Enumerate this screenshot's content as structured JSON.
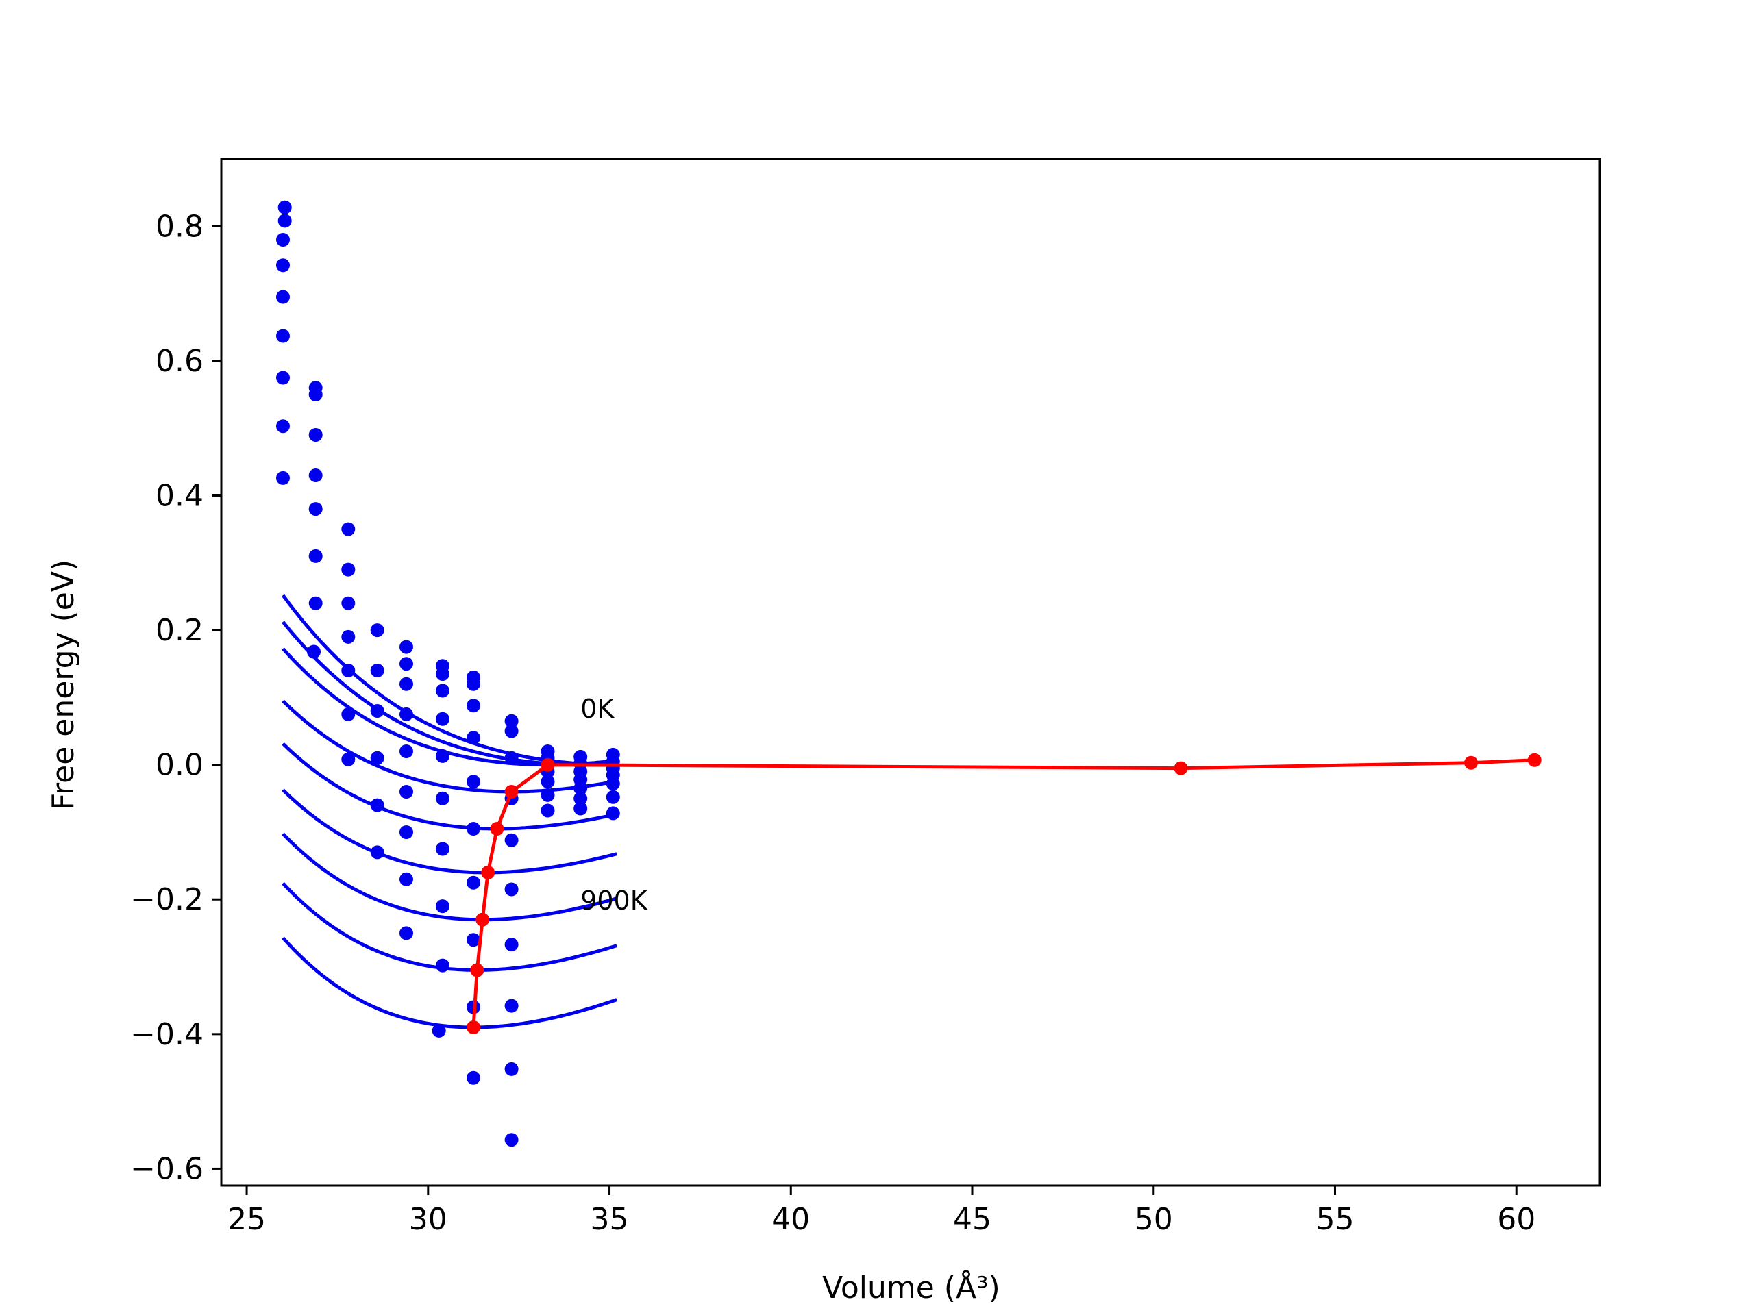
{
  "chart_data": {
    "type": "line",
    "title": "",
    "xlabel": "Volume (Å³)",
    "ylabel": "Free energy (eV)",
    "xlim": [
      24.3,
      62.3
    ],
    "ylim": [
      -0.625,
      0.9
    ],
    "xticks": [
      25,
      30,
      35,
      40,
      45,
      50,
      55,
      60
    ],
    "yticks": [
      -0.6,
      -0.4,
      -0.2,
      0.0,
      0.2,
      0.4,
      0.6,
      0.8
    ],
    "xtick_labels": [
      "25",
      "30",
      "35",
      "40",
      "45",
      "50",
      "55",
      "60"
    ],
    "ytick_labels": [
      "−0.6",
      "−0.4",
      "−0.2",
      "0.0",
      "0.2",
      "0.4",
      "0.6",
      "0.8"
    ],
    "grid": false,
    "legend": "none",
    "annotations": [
      {
        "text": "0K",
        "x": 34.2,
        "y": 0.07
      },
      {
        "text": "900K",
        "x": 34.2,
        "y": -0.215
      }
    ],
    "fit_curves": [
      {
        "color": "#0000ee",
        "v_min": 35.2,
        "f_min": 0.0,
        "stiffness": 0.0127,
        "v_start": 26.0,
        "v_end": 35.2
      },
      {
        "color": "#0000ee",
        "v_min": 34.3,
        "f_min": 0.0,
        "stiffness": 0.0135,
        "v_start": 26.0,
        "v_end": 35.2
      },
      {
        "color": "#0000ee",
        "v_min": 33.3,
        "f_min": 0.0,
        "stiffness": 0.0146,
        "v_start": 26.0,
        "v_end": 35.2
      },
      {
        "color": "#0000ee",
        "v_min": 32.3,
        "f_min": -0.04,
        "stiffness": 0.0158,
        "v_start": 26.0,
        "v_end": 35.2
      },
      {
        "color": "#0000ee",
        "v_min": 31.9,
        "f_min": -0.095,
        "stiffness": 0.0171,
        "v_start": 26.0,
        "v_end": 35.2
      },
      {
        "color": "#0000ee",
        "v_min": 31.6,
        "f_min": -0.16,
        "stiffness": 0.0186,
        "v_start": 26.0,
        "v_end": 35.2
      },
      {
        "color": "#0000ee",
        "v_min": 31.5,
        "f_min": -0.23,
        "stiffness": 0.0201,
        "v_start": 26.0,
        "v_end": 35.2
      },
      {
        "color": "#0000ee",
        "v_min": 31.35,
        "f_min": -0.305,
        "stiffness": 0.0216,
        "v_start": 26.0,
        "v_end": 35.2
      },
      {
        "color": "#0000ee",
        "v_min": 31.25,
        "f_min": -0.39,
        "stiffness": 0.0232,
        "v_start": 26.0,
        "v_end": 35.2
      }
    ],
    "series": [
      {
        "color": "#0000ee",
        "mode": "scatter",
        "points": [
          [
            26.05,
            0.828
          ],
          [
            26.05,
            0.808
          ],
          [
            26.0,
            0.78
          ],
          [
            26.0,
            0.742
          ],
          [
            26.0,
            0.695
          ],
          [
            26.0,
            0.637
          ],
          [
            26.0,
            0.575
          ],
          [
            26.0,
            0.503
          ],
          [
            26.0,
            0.426
          ],
          [
            26.9,
            0.56
          ],
          [
            26.9,
            0.55
          ],
          [
            26.9,
            0.49
          ],
          [
            26.9,
            0.43
          ],
          [
            26.9,
            0.38
          ],
          [
            26.9,
            0.31
          ],
          [
            26.9,
            0.24
          ],
          [
            26.85,
            0.168
          ],
          [
            27.8,
            0.35
          ],
          [
            27.8,
            0.29
          ],
          [
            27.8,
            0.24
          ],
          [
            27.8,
            0.19
          ],
          [
            27.8,
            0.14
          ],
          [
            27.8,
            0.075
          ],
          [
            27.8,
            0.008
          ],
          [
            28.6,
            0.2
          ],
          [
            28.6,
            0.14
          ],
          [
            28.6,
            0.08
          ],
          [
            28.6,
            0.01
          ],
          [
            28.6,
            -0.06
          ],
          [
            28.6,
            -0.13
          ],
          [
            29.4,
            0.175
          ],
          [
            29.4,
            0.15
          ],
          [
            29.4,
            0.12
          ],
          [
            29.4,
            0.075
          ],
          [
            29.4,
            0.02
          ],
          [
            29.4,
            -0.04
          ],
          [
            29.4,
            -0.1
          ],
          [
            29.4,
            -0.17
          ],
          [
            29.4,
            -0.25
          ],
          [
            30.4,
            0.147
          ],
          [
            30.4,
            0.135
          ],
          [
            30.4,
            0.11
          ],
          [
            30.4,
            0.068
          ],
          [
            30.4,
            0.013
          ],
          [
            30.4,
            -0.05
          ],
          [
            30.4,
            -0.125
          ],
          [
            30.4,
            -0.21
          ],
          [
            30.4,
            -0.298
          ],
          [
            30.3,
            -0.395
          ],
          [
            31.25,
            0.13
          ],
          [
            31.25,
            0.12
          ],
          [
            31.25,
            0.088
          ],
          [
            31.25,
            0.04
          ],
          [
            31.25,
            -0.025
          ],
          [
            31.25,
            -0.095
          ],
          [
            31.25,
            -0.175
          ],
          [
            31.25,
            -0.26
          ],
          [
            31.25,
            -0.36
          ],
          [
            31.25,
            -0.465
          ],
          [
            32.3,
            0.065
          ],
          [
            32.3,
            0.05
          ],
          [
            32.3,
            0.01
          ],
          [
            32.3,
            -0.05
          ],
          [
            32.3,
            -0.112
          ],
          [
            32.3,
            -0.185
          ],
          [
            32.3,
            -0.267
          ],
          [
            32.3,
            -0.358
          ],
          [
            32.3,
            -0.452
          ],
          [
            32.3,
            -0.557
          ],
          [
            33.3,
            0.02
          ],
          [
            33.3,
            0.01
          ],
          [
            33.3,
            -0.01
          ],
          [
            33.3,
            -0.025
          ],
          [
            33.3,
            -0.045
          ],
          [
            33.3,
            -0.068
          ],
          [
            34.2,
            0.012
          ],
          [
            34.2,
            0.002
          ],
          [
            34.2,
            -0.01
          ],
          [
            34.2,
            -0.022
          ],
          [
            34.2,
            -0.035
          ],
          [
            34.2,
            -0.05
          ],
          [
            34.2,
            -0.065
          ],
          [
            35.1,
            0.015
          ],
          [
            35.1,
            0.005
          ],
          [
            35.1,
            -0.005
          ],
          [
            35.1,
            -0.015
          ],
          [
            35.1,
            -0.028
          ],
          [
            35.1,
            -0.048
          ],
          [
            35.1,
            -0.072
          ]
        ]
      },
      {
        "color": "#ff0000",
        "mode": "line+markers",
        "points": [
          [
            31.25,
            -0.39
          ],
          [
            31.35,
            -0.305
          ],
          [
            31.5,
            -0.23
          ],
          [
            31.65,
            -0.16
          ],
          [
            31.9,
            -0.095
          ],
          [
            32.3,
            -0.04
          ],
          [
            33.3,
            0.0
          ],
          [
            50.75,
            -0.005
          ],
          [
            58.75,
            0.003
          ],
          [
            60.5,
            0.007
          ]
        ]
      }
    ]
  }
}
